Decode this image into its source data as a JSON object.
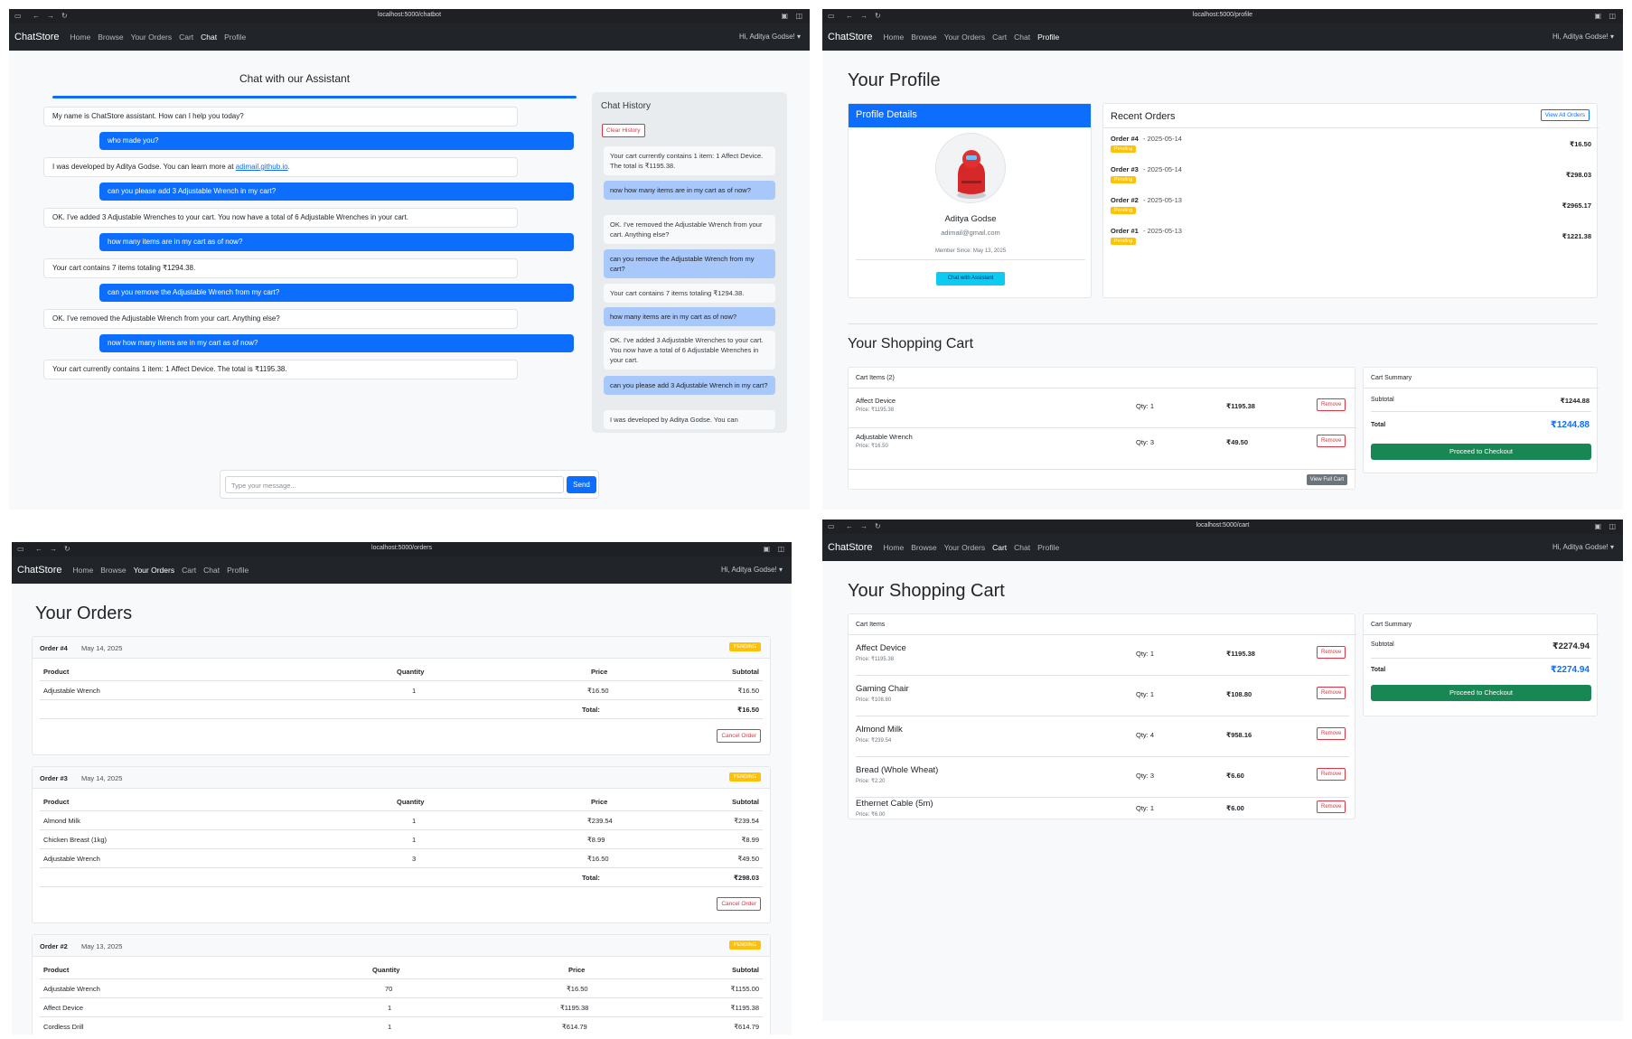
{
  "nav": {
    "brand": "ChatStore",
    "links": [
      "Home",
      "Browse",
      "Your Orders",
      "Cart",
      "Chat",
      "Profile"
    ],
    "greeting": "Hi, Aditya Godse! ▾"
  },
  "chat_window": {
    "url": "localhost:5000/chatbot",
    "title": "Chat with our Assistant",
    "messages": [
      {
        "role": "bot",
        "text": "My name is ChatStore assistant. How can I help you today?"
      },
      {
        "role": "user",
        "text": "who made you?"
      },
      {
        "role": "bot",
        "text": "I was developed by Aditya Godse. You can learn more at ",
        "link": "adimail.github.io",
        "tail": "."
      },
      {
        "role": "user",
        "text": "can you please add 3 Adjustable Wrench in my cart?"
      },
      {
        "role": "bot",
        "text": "OK. I've added 3 Adjustable Wrenches to your cart. You now have a total of 6 Adjustable Wrenches in your cart."
      },
      {
        "role": "user",
        "text": "how many items are in my cart as of now?"
      },
      {
        "role": "bot",
        "text": "Your cart contains 7 items totaling ₹1294.38."
      },
      {
        "role": "user",
        "text": "can you remove the Adjustable Wrench from my cart?"
      },
      {
        "role": "bot",
        "text": "OK. I've removed the Adjustable Wrench from your cart. Anything else?"
      },
      {
        "role": "user",
        "text": "now how many items are in my cart as of now?"
      },
      {
        "role": "bot",
        "text": "Your cart currently contains 1 item: 1 Affect Device. The total is ₹1195.38."
      }
    ],
    "input_placeholder": "Type your message...",
    "send_label": "Send",
    "history": {
      "title": "Chat History",
      "clear_label": "Clear History",
      "items": [
        {
          "role": "bot",
          "text": "Your cart currently contains 1 item: 1 Affect Device. The total is ₹1195.38."
        },
        {
          "role": "user",
          "text": "now how many items are in my cart as of now?"
        },
        {
          "role": "bot",
          "text": "OK. I've removed the Adjustable Wrench from your cart. Anything else?"
        },
        {
          "role": "user",
          "text": "can you remove the Adjustable Wrench from my cart?"
        },
        {
          "role": "bot",
          "text": "Your cart contains 7 items totaling ₹1294.38."
        },
        {
          "role": "user",
          "text": "how many items are in my cart as of now?"
        },
        {
          "role": "bot",
          "text": "OK. I've added 3 Adjustable Wrenches to your cart. You now have a total of 6 Adjustable Wrenches in your cart."
        },
        {
          "role": "user",
          "text": "can you please add 3 Adjustable Wrench in my cart?"
        },
        {
          "role": "bot",
          "text": "I was developed by Aditya Godse. You can"
        }
      ]
    }
  },
  "profile_window": {
    "url": "localhost:5000/profile",
    "title": "Your Profile",
    "details_title": "Profile Details",
    "name": "Aditya Godse",
    "email": "adimail@gmail.com",
    "member_since": "Member Since: May 13, 2025",
    "chat_btn": "Chat with Assistant",
    "recent_title": "Recent Orders",
    "view_all": "View All Orders",
    "orders": [
      {
        "label": "Order #4",
        "date": " - 2025-05-14",
        "status": "Pending",
        "amount": "₹16.50"
      },
      {
        "label": "Order #3",
        "date": " - 2025-05-14",
        "status": "Pending",
        "amount": "₹298.03"
      },
      {
        "label": "Order #2",
        "date": " - 2025-05-13",
        "status": "Pending",
        "amount": "₹2965.17"
      },
      {
        "label": "Order #1",
        "date": " - 2025-05-13",
        "status": "Pending",
        "amount": "₹1221.38"
      }
    ],
    "cart_title": "Your Shopping Cart",
    "cart_items_title": "Cart Items (2)",
    "cart_items": [
      {
        "name": "Affect Device",
        "price": "Price: ₹1195.38",
        "qty": "Qty: 1",
        "total": "₹1195.38"
      },
      {
        "name": "Adjustable Wrench",
        "price": "Price: ₹16.50",
        "qty": "Qty: 3",
        "total": "₹49.50"
      }
    ],
    "remove_label": "Remove",
    "view_full_cart": "View Full Cart",
    "summary_title": "Cart Summary",
    "subtotal_label": "Subtotal",
    "subtotal": "₹1244.88",
    "total_label": "Total",
    "total": "₹1244.88",
    "checkout": "Proceed to Checkout"
  },
  "orders_window": {
    "url": "localhost:5000/orders",
    "title": "Your Orders",
    "headers": [
      "Product",
      "Quantity",
      "Price",
      "Subtotal"
    ],
    "status": "PENDING",
    "total_label": "Total:",
    "cancel_label": "Cancel Order",
    "orders": [
      {
        "label": "Order #4",
        "date": "May 14, 2025",
        "rows": [
          [
            "Adjustable Wrench",
            "1",
            "₹16.50",
            "₹16.50"
          ]
        ],
        "total": "₹16.50"
      },
      {
        "label": "Order #3",
        "date": "May 14, 2025",
        "rows": [
          [
            "Almond Milk",
            "1",
            "₹239.54",
            "₹239.54"
          ],
          [
            "Chicken Breast (1kg)",
            "1",
            "₹8.99",
            "₹8.99"
          ],
          [
            "Adjustable Wrench",
            "3",
            "₹16.50",
            "₹49.50"
          ]
        ],
        "total": "₹298.03"
      },
      {
        "label": "Order #2",
        "date": "May 13, 2025",
        "rows": [
          [
            "Adjustable Wrench",
            "70",
            "₹16.50",
            "₹1155.00"
          ],
          [
            "Affect Device",
            "1",
            "₹1195.38",
            "₹1195.38"
          ],
          [
            "Cordless Drill",
            "1",
            "₹614.79",
            "₹614.79"
          ]
        ],
        "total": ""
      }
    ]
  },
  "cart_window": {
    "url": "localhost:5000/cart",
    "title": "Your Shopping Cart",
    "items_title": "Cart Items",
    "items": [
      {
        "name": "Affect Device",
        "price": "Price: ₹1195.38",
        "qty": "Qty: 1",
        "total": "₹1195.38"
      },
      {
        "name": "Gaming Chair",
        "price": "Price: ₹108.80",
        "qty": "Qty: 1",
        "total": "₹108.80"
      },
      {
        "name": "Almond Milk",
        "price": "Price: ₹239.54",
        "qty": "Qty: 4",
        "total": "₹958.16"
      },
      {
        "name": "Bread (Whole Wheat)",
        "price": "Price: ₹2.20",
        "qty": "Qty: 3",
        "total": "₹6.60"
      },
      {
        "name": "Ethernet Cable (5m)",
        "price": "Price: ₹6.00",
        "qty": "Qty: 1",
        "total": "₹6.00"
      }
    ],
    "remove_label": "Remove",
    "summary_title": "Cart Summary",
    "subtotal_label": "Subtotal",
    "subtotal": "₹2274.94",
    "total_label": "Total",
    "total": "₹2274.94",
    "checkout": "Proceed to Checkout"
  },
  "colors": {
    "primary": "#0d6efd",
    "navbar": "#212529",
    "success": "#198754",
    "warning": "#ffc107",
    "danger": "#dc3545"
  }
}
